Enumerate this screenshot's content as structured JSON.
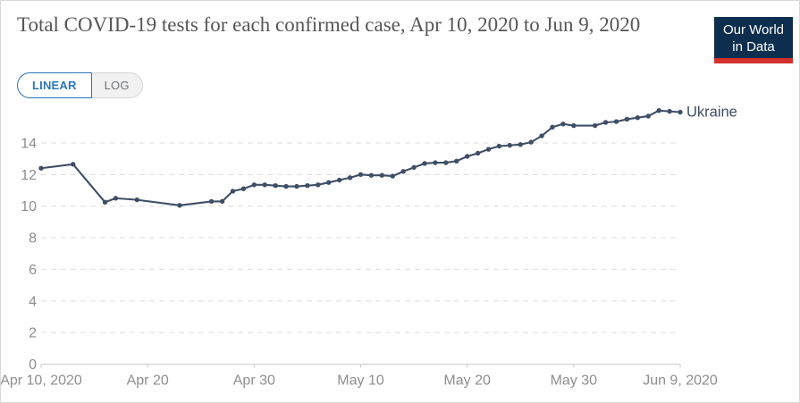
{
  "header": {
    "title": "Total COVID-19 tests for each confirmed case, Apr 10, 2020 to Jun 9, 2020",
    "logo": {
      "line1": "Our World",
      "line2": "in Data"
    }
  },
  "toolbar": {
    "linear_label": "LINEAR",
    "log_label": "LOG",
    "active_scale": "LINEAR"
  },
  "colors": {
    "line": "#3f4e66",
    "axis_text": "#8e8e8e",
    "grid": "#dddddd",
    "axis_line": "#cbcbcb",
    "title_text": "#565656",
    "accent_blue": "#2b76bd",
    "logo_navy": "#0d2e4e",
    "logo_red": "#d2302c"
  },
  "chart_data": {
    "type": "line",
    "title": "Total COVID-19 tests for each confirmed case, Apr 10, 2020 to Jun 9, 2020",
    "xlabel": "",
    "ylabel": "",
    "grid": "horizontal-dashed",
    "legend_position": "end-of-line-label",
    "xlim_days": [
      0,
      60
    ],
    "ylim": [
      0,
      16.3
    ],
    "y_ticks": [
      0,
      2,
      4,
      6,
      8,
      10,
      12,
      14
    ],
    "x_tick_days": [
      0,
      10,
      20,
      30,
      40,
      50,
      60
    ],
    "x_tick_labels": [
      "Apr 10, 2020",
      "Apr 20",
      "Apr 30",
      "May 10",
      "May 20",
      "May 30",
      "Jun 9, 2020"
    ],
    "series": [
      {
        "name": "Ukraine",
        "points": [
          {
            "date": "Apr 10",
            "day": 0,
            "value": 12.4
          },
          {
            "date": "Apr 13",
            "day": 3,
            "value": 12.65
          },
          {
            "date": "Apr 16",
            "day": 6,
            "value": 10.25
          },
          {
            "date": "Apr 17",
            "day": 7,
            "value": 10.5
          },
          {
            "date": "Apr 19",
            "day": 9,
            "value": 10.4
          },
          {
            "date": "Apr 23",
            "day": 13,
            "value": 10.05
          },
          {
            "date": "Apr 26",
            "day": 16,
            "value": 10.3
          },
          {
            "date": "Apr 27",
            "day": 17,
            "value": 10.3
          },
          {
            "date": "Apr 28",
            "day": 18,
            "value": 10.95
          },
          {
            "date": "Apr 29",
            "day": 19,
            "value": 11.1
          },
          {
            "date": "Apr 30",
            "day": 20,
            "value": 11.35
          },
          {
            "date": "May 1",
            "day": 21,
            "value": 11.35
          },
          {
            "date": "May 2",
            "day": 22,
            "value": 11.3
          },
          {
            "date": "May 3",
            "day": 23,
            "value": 11.25
          },
          {
            "date": "May 4",
            "day": 24,
            "value": 11.25
          },
          {
            "date": "May 5",
            "day": 25,
            "value": 11.3
          },
          {
            "date": "May 6",
            "day": 26,
            "value": 11.35
          },
          {
            "date": "May 7",
            "day": 27,
            "value": 11.5
          },
          {
            "date": "May 8",
            "day": 28,
            "value": 11.65
          },
          {
            "date": "May 9",
            "day": 29,
            "value": 11.8
          },
          {
            "date": "May 10",
            "day": 30,
            "value": 12.0
          },
          {
            "date": "May 11",
            "day": 31,
            "value": 11.95
          },
          {
            "date": "May 12",
            "day": 32,
            "value": 11.95
          },
          {
            "date": "May 13",
            "day": 33,
            "value": 11.9
          },
          {
            "date": "May 14",
            "day": 34,
            "value": 12.2
          },
          {
            "date": "May 15",
            "day": 35,
            "value": 12.45
          },
          {
            "date": "May 16",
            "day": 36,
            "value": 12.7
          },
          {
            "date": "May 17",
            "day": 37,
            "value": 12.75
          },
          {
            "date": "May 18",
            "day": 38,
            "value": 12.75
          },
          {
            "date": "May 19",
            "day": 39,
            "value": 12.85
          },
          {
            "date": "May 20",
            "day": 40,
            "value": 13.15
          },
          {
            "date": "May 21",
            "day": 41,
            "value": 13.35
          },
          {
            "date": "May 22",
            "day": 42,
            "value": 13.6
          },
          {
            "date": "May 23",
            "day": 43,
            "value": 13.8
          },
          {
            "date": "May 24",
            "day": 44,
            "value": 13.85
          },
          {
            "date": "May 25",
            "day": 45,
            "value": 13.9
          },
          {
            "date": "May 26",
            "day": 46,
            "value": 14.05
          },
          {
            "date": "May 27",
            "day": 47,
            "value": 14.45
          },
          {
            "date": "May 28",
            "day": 48,
            "value": 15.0
          },
          {
            "date": "May 29",
            "day": 49,
            "value": 15.2
          },
          {
            "date": "May 30",
            "day": 50,
            "value": 15.1
          },
          {
            "date": "Jun 1",
            "day": 52,
            "value": 15.1
          },
          {
            "date": "Jun 2",
            "day": 53,
            "value": 15.3
          },
          {
            "date": "Jun 3",
            "day": 54,
            "value": 15.35
          },
          {
            "date": "Jun 4",
            "day": 55,
            "value": 15.5
          },
          {
            "date": "Jun 5",
            "day": 56,
            "value": 15.6
          },
          {
            "date": "Jun 6",
            "day": 57,
            "value": 15.7
          },
          {
            "date": "Jun 7",
            "day": 58,
            "value": 16.05
          },
          {
            "date": "Jun 8",
            "day": 59,
            "value": 16.0
          },
          {
            "date": "Jun 9",
            "day": 60,
            "value": 15.95
          }
        ]
      }
    ]
  }
}
